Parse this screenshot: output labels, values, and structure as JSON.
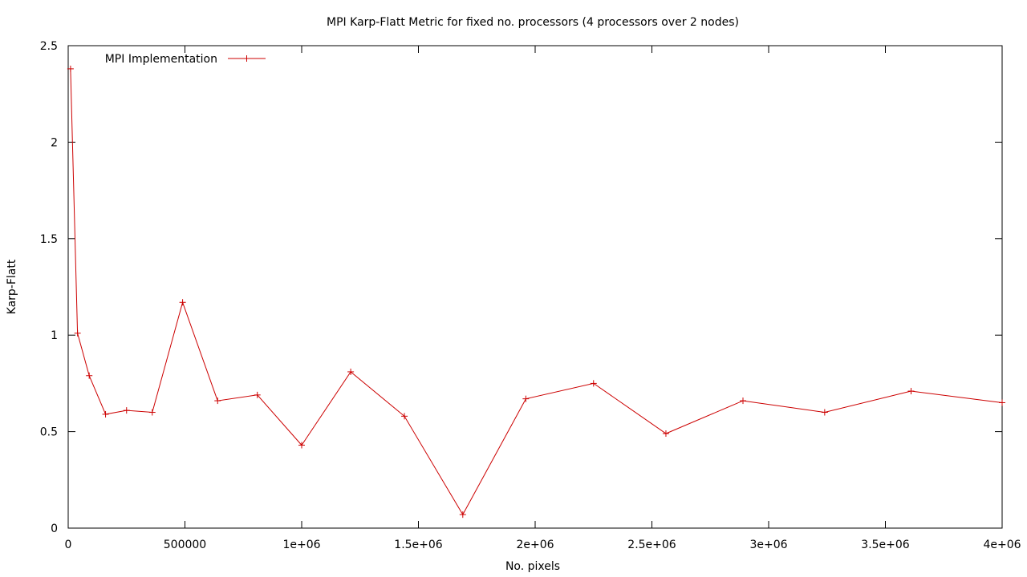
{
  "chart_data": {
    "type": "line",
    "title": "MPI Karp-Flatt Metric for fixed no. processors (4 processors over 2 nodes)",
    "xlabel": "No. pixels",
    "ylabel": "Karp-Flatt",
    "xlim": [
      0,
      4000000
    ],
    "ylim": [
      0,
      2.5
    ],
    "xticks": [
      0,
      500000,
      1000000,
      1500000,
      2000000,
      2500000,
      3000000,
      3500000,
      4000000
    ],
    "xtick_labels": [
      "0",
      "500000",
      "1e+06",
      "1.5e+06",
      "2e+06",
      "2.5e+06",
      "3e+06",
      "3.5e+06",
      "4e+06"
    ],
    "yticks": [
      0,
      0.5,
      1,
      1.5,
      2,
      2.5
    ],
    "ytick_labels": [
      "0",
      "0.5",
      "1",
      "1.5",
      "2",
      "2.5"
    ],
    "grid": false,
    "legend_position": "top-left",
    "series": [
      {
        "name": "MPI Implementation",
        "color": "#cc0000",
        "marker": "plus",
        "x": [
          10000,
          40000,
          90000,
          160000,
          250000,
          360000,
          490000,
          640000,
          810000,
          1000000,
          1210000,
          1440000,
          1690000,
          1960000,
          2250000,
          2560000,
          2890000,
          3240000,
          3610000,
          4000000
        ],
        "y": [
          2.38,
          1.01,
          0.79,
          0.59,
          0.61,
          0.6,
          1.17,
          0.66,
          0.69,
          0.43,
          0.81,
          0.58,
          0.07,
          0.67,
          0.75,
          0.49,
          0.66,
          0.6,
          0.71,
          0.65
        ]
      }
    ]
  }
}
